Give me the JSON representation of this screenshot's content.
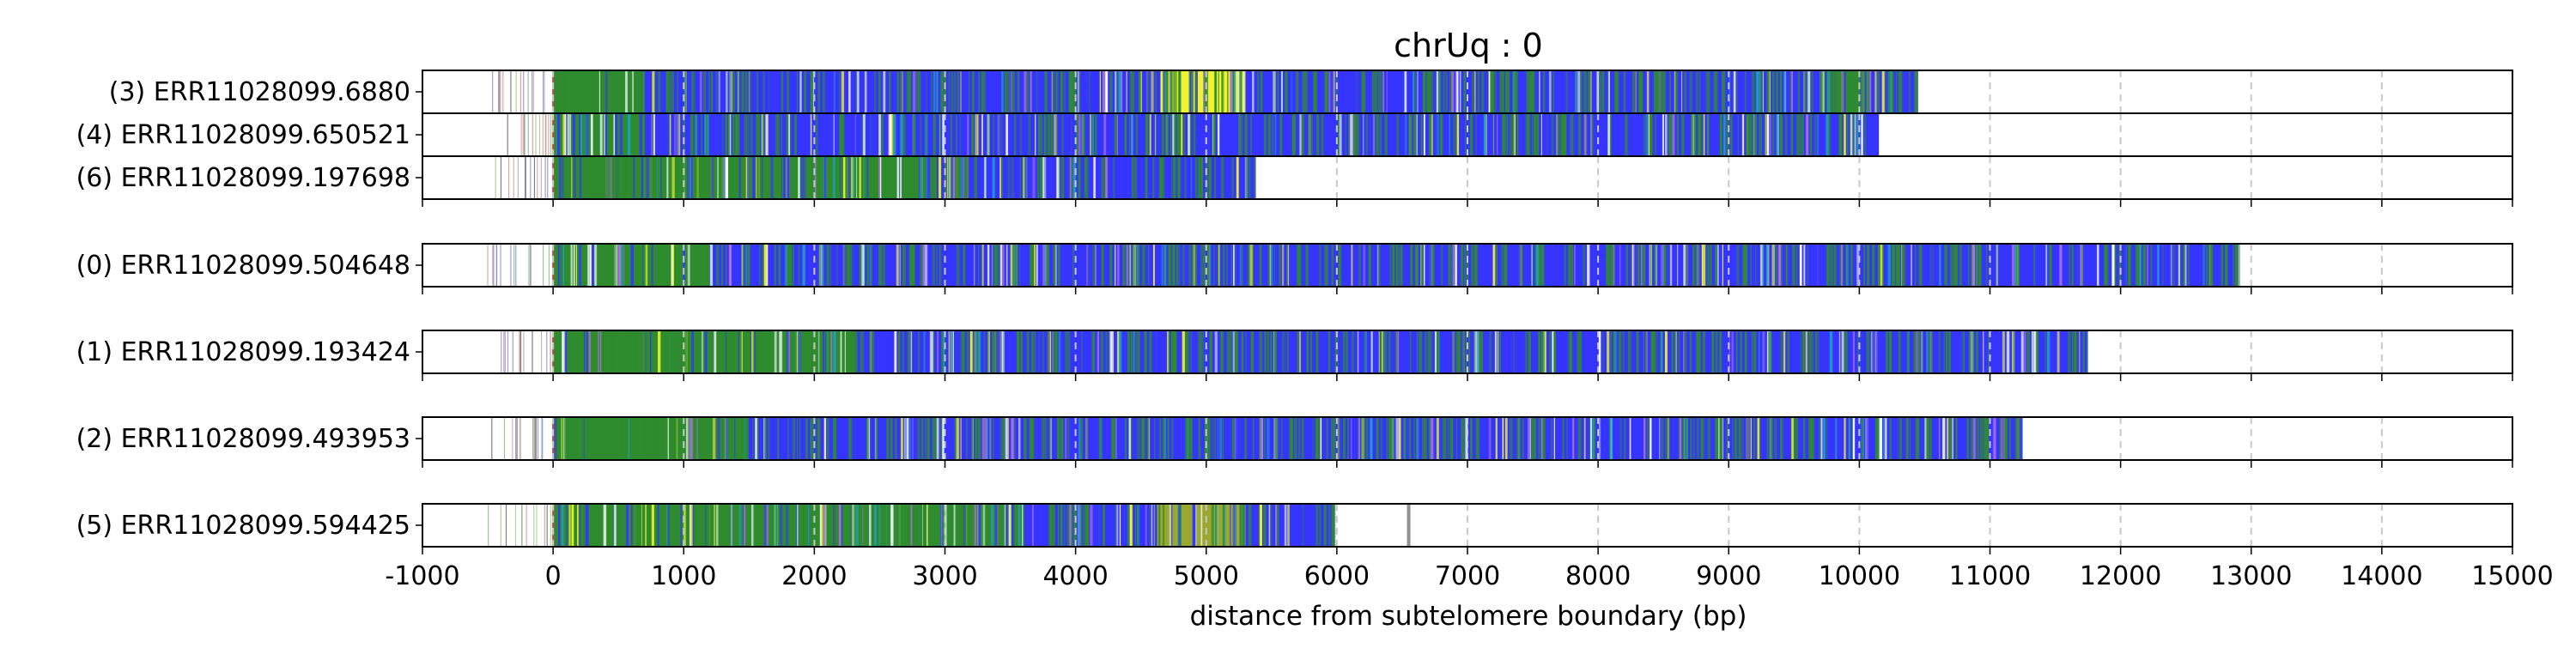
{
  "chart_data": {
    "type": "read-track",
    "title": "chrUq : 0",
    "xlabel": "distance from subtelomere boundary (bp)",
    "xlim": [
      -1000,
      15000
    ],
    "xticks": [
      -1000,
      0,
      1000,
      2000,
      3000,
      4000,
      5000,
      6000,
      7000,
      8000,
      9000,
      10000,
      11000,
      12000,
      13000,
      14000,
      15000
    ],
    "grid": "vertical dashed",
    "colors": {
      "blue": "#3535ff",
      "green": "#2e8b2e",
      "yellow": "#f2f230",
      "olive": "#9aa830",
      "violet": "#b070e0",
      "light": "#d8e8e0"
    },
    "groups": [
      {
        "reads": [
          {
            "label": "(3) ERR11028099.6880",
            "sparse_start": -500,
            "start": 0,
            "end": 10450,
            "segments": [
              {
                "from": 0,
                "to": 700,
                "color": "green"
              },
              {
                "from": 700,
                "to": 4650,
                "color": "blue"
              },
              {
                "from": 4650,
                "to": 5300,
                "color": "yellow"
              },
              {
                "from": 5300,
                "to": 9700,
                "color": "blue"
              },
              {
                "from": 9700,
                "to": 10000,
                "color": "green"
              },
              {
                "from": 10000,
                "to": 10450,
                "color": "blue"
              }
            ]
          },
          {
            "label": "(4) ERR11028099.650521",
            "sparse_start": -400,
            "start": 0,
            "end": 10150,
            "segments": [
              {
                "from": 0,
                "to": 700,
                "color": "green"
              },
              {
                "from": 700,
                "to": 10150,
                "color": "blue"
              }
            ]
          },
          {
            "label": "(6) ERR11028099.197698",
            "sparse_start": -500,
            "start": 0,
            "end": 5380,
            "segments": [
              {
                "from": 0,
                "to": 700,
                "color": "green"
              },
              {
                "from": 700,
                "to": 2800,
                "color": "green"
              },
              {
                "from": 2800,
                "to": 5380,
                "color": "blue"
              }
            ]
          }
        ]
      },
      {
        "reads": [
          {
            "label": "(0) ERR11028099.504648",
            "sparse_start": -550,
            "start": 0,
            "end": 12900,
            "segments": [
              {
                "from": 0,
                "to": 1200,
                "color": "green"
              },
              {
                "from": 1200,
                "to": 12900,
                "color": "blue"
              }
            ]
          }
        ]
      },
      {
        "reads": [
          {
            "label": "(1) ERR11028099.193424",
            "sparse_start": -450,
            "start": 0,
            "end": 11750,
            "segments": [
              {
                "from": 0,
                "to": 2300,
                "color": "green"
              },
              {
                "from": 2300,
                "to": 11750,
                "color": "blue"
              }
            ]
          }
        ]
      },
      {
        "reads": [
          {
            "label": "(2) ERR11028099.493953",
            "sparse_start": -500,
            "start": 0,
            "end": 11250,
            "segments": [
              {
                "from": 0,
                "to": 1500,
                "color": "green"
              },
              {
                "from": 1500,
                "to": 11250,
                "color": "blue"
              }
            ]
          }
        ]
      },
      {
        "reads": [
          {
            "label": "(5) ERR11028099.594425",
            "sparse_start": -500,
            "start": 0,
            "end": 5980,
            "marker": 6550,
            "segments": [
              {
                "from": 0,
                "to": 1200,
                "color": "green"
              },
              {
                "from": 1200,
                "to": 3600,
                "color": "green"
              },
              {
                "from": 3600,
                "to": 4600,
                "color": "blue"
              },
              {
                "from": 4600,
                "to": 5300,
                "color": "olive"
              },
              {
                "from": 5300,
                "to": 5980,
                "color": "blue"
              }
            ]
          }
        ]
      }
    ]
  }
}
